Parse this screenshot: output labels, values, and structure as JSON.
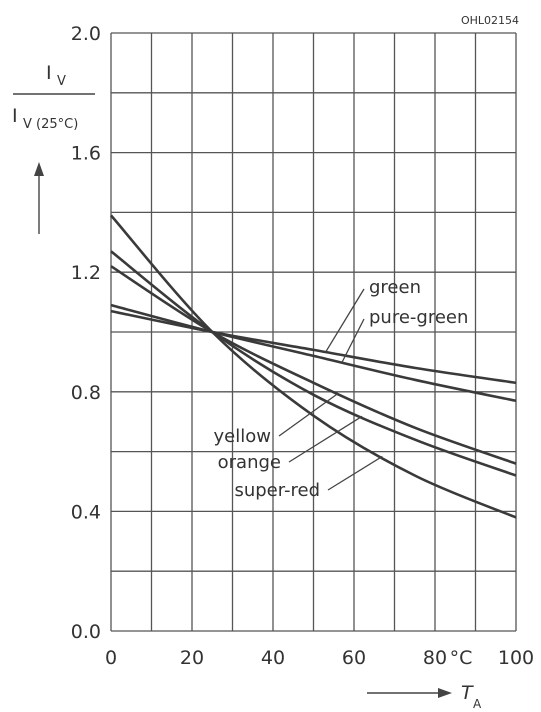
{
  "chart_data": {
    "type": "line",
    "code": "OHL02154",
    "ylabel": {
      "numerator": "I",
      "numerator_sub": "V",
      "denominator": "I",
      "denominator_sub": "V (25°C)"
    },
    "xlabel": {
      "symbol": "T",
      "sub": "A"
    },
    "xunit": "°C",
    "xlim": [
      0,
      100
    ],
    "ylim": [
      0,
      2.0
    ],
    "grid": true,
    "x_ticks": [
      {
        "value": 0,
        "label": "0"
      },
      {
        "value": 20,
        "label": "20"
      },
      {
        "value": 40,
        "label": "40"
      },
      {
        "value": 60,
        "label": "60"
      },
      {
        "value": 80,
        "label": "80"
      },
      {
        "value": 100,
        "label": "100"
      }
    ],
    "y_ticks": [
      {
        "value": 0,
        "label": "0.0"
      },
      {
        "value": 0.4,
        "label": "0.4"
      },
      {
        "value": 0.8,
        "label": "0.8"
      },
      {
        "value": 1.2,
        "label": "1.2"
      },
      {
        "value": 1.6,
        "label": "1.6"
      },
      {
        "value": 2.0,
        "label": "2.0"
      }
    ],
    "series": [
      {
        "name": "green",
        "x": [
          0,
          25,
          50,
          75,
          100
        ],
        "values": [
          1.07,
          1.0,
          0.94,
          0.88,
          0.83
        ]
      },
      {
        "name": "pure-green",
        "x": [
          0,
          25,
          50,
          75,
          100
        ],
        "values": [
          1.09,
          1.0,
          0.92,
          0.84,
          0.77
        ]
      },
      {
        "name": "yellow",
        "x": [
          0,
          25,
          50,
          75,
          100
        ],
        "values": [
          1.22,
          1.0,
          0.83,
          0.68,
          0.56
        ]
      },
      {
        "name": "orange",
        "x": [
          0,
          25,
          50,
          75,
          100
        ],
        "values": [
          1.27,
          1.0,
          0.79,
          0.64,
          0.52
        ]
      },
      {
        "name": "super-red",
        "x": [
          0,
          25,
          50,
          75,
          100
        ],
        "values": [
          1.39,
          1.0,
          0.72,
          0.52,
          0.38
        ]
      }
    ]
  }
}
